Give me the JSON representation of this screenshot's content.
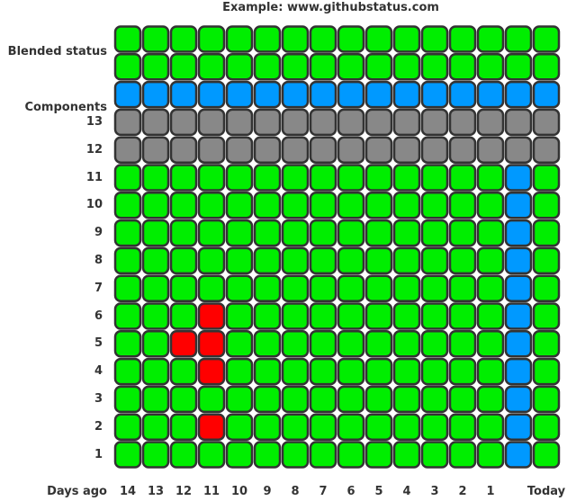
{
  "title": "Example: www.githubstatus.com",
  "labels": {
    "blended": "Blended status",
    "components": "Components",
    "days_ago": "Days ago"
  },
  "colors": {
    "green": "#00ee00",
    "blue": "#0099ff",
    "gray": "#888888",
    "red": "#ff0000",
    "border": "#333333"
  },
  "columns": [
    "14",
    "13",
    "12",
    "11",
    "10",
    "9",
    "8",
    "7",
    "6",
    "5",
    "4",
    "3",
    "2",
    "1",
    "",
    "Today"
  ],
  "blended_rows": [
    [
      "green",
      "green",
      "green",
      "green",
      "green",
      "green",
      "green",
      "green",
      "green",
      "green",
      "green",
      "green",
      "green",
      "green",
      "green",
      "green"
    ],
    [
      "green",
      "green",
      "green",
      "green",
      "green",
      "green",
      "green",
      "green",
      "green",
      "green",
      "green",
      "green",
      "green",
      "green",
      "green",
      "green"
    ],
    [
      "blue",
      "blue",
      "blue",
      "blue",
      "blue",
      "blue",
      "blue",
      "blue",
      "blue",
      "blue",
      "blue",
      "blue",
      "blue",
      "blue",
      "blue",
      "blue"
    ]
  ],
  "components": [
    {
      "label": "13",
      "cells": [
        "gray",
        "gray",
        "gray",
        "gray",
        "gray",
        "gray",
        "gray",
        "gray",
        "gray",
        "gray",
        "gray",
        "gray",
        "gray",
        "gray",
        "gray",
        "gray"
      ]
    },
    {
      "label": "12",
      "cells": [
        "gray",
        "gray",
        "gray",
        "gray",
        "gray",
        "gray",
        "gray",
        "gray",
        "gray",
        "gray",
        "gray",
        "gray",
        "gray",
        "gray",
        "gray",
        "gray"
      ]
    },
    {
      "label": "11",
      "cells": [
        "green",
        "green",
        "green",
        "green",
        "green",
        "green",
        "green",
        "green",
        "green",
        "green",
        "green",
        "green",
        "green",
        "green",
        "blue",
        "green"
      ]
    },
    {
      "label": "10",
      "cells": [
        "green",
        "green",
        "green",
        "green",
        "green",
        "green",
        "green",
        "green",
        "green",
        "green",
        "green",
        "green",
        "green",
        "green",
        "blue",
        "green"
      ]
    },
    {
      "label": "9",
      "cells": [
        "green",
        "green",
        "green",
        "green",
        "green",
        "green",
        "green",
        "green",
        "green",
        "green",
        "green",
        "green",
        "green",
        "green",
        "blue",
        "green"
      ]
    },
    {
      "label": "8",
      "cells": [
        "green",
        "green",
        "green",
        "green",
        "green",
        "green",
        "green",
        "green",
        "green",
        "green",
        "green",
        "green",
        "green",
        "green",
        "blue",
        "green"
      ]
    },
    {
      "label": "7",
      "cells": [
        "green",
        "green",
        "green",
        "green",
        "green",
        "green",
        "green",
        "green",
        "green",
        "green",
        "green",
        "green",
        "green",
        "green",
        "blue",
        "green"
      ]
    },
    {
      "label": "6",
      "cells": [
        "green",
        "green",
        "green",
        "red",
        "green",
        "green",
        "green",
        "green",
        "green",
        "green",
        "green",
        "green",
        "green",
        "green",
        "blue",
        "green"
      ]
    },
    {
      "label": "5",
      "cells": [
        "green",
        "green",
        "red",
        "red",
        "green",
        "green",
        "green",
        "green",
        "green",
        "green",
        "green",
        "green",
        "green",
        "green",
        "blue",
        "green"
      ]
    },
    {
      "label": "4",
      "cells": [
        "green",
        "green",
        "green",
        "red",
        "green",
        "green",
        "green",
        "green",
        "green",
        "green",
        "green",
        "green",
        "green",
        "green",
        "blue",
        "green"
      ]
    },
    {
      "label": "3",
      "cells": [
        "green",
        "green",
        "green",
        "green",
        "green",
        "green",
        "green",
        "green",
        "green",
        "green",
        "green",
        "green",
        "green",
        "green",
        "blue",
        "green"
      ]
    },
    {
      "label": "2",
      "cells": [
        "green",
        "green",
        "green",
        "red",
        "green",
        "green",
        "green",
        "green",
        "green",
        "green",
        "green",
        "green",
        "green",
        "green",
        "blue",
        "green"
      ]
    },
    {
      "label": "1",
      "cells": [
        "green",
        "green",
        "green",
        "green",
        "green",
        "green",
        "green",
        "green",
        "green",
        "green",
        "green",
        "green",
        "green",
        "green",
        "blue",
        "green"
      ]
    }
  ]
}
